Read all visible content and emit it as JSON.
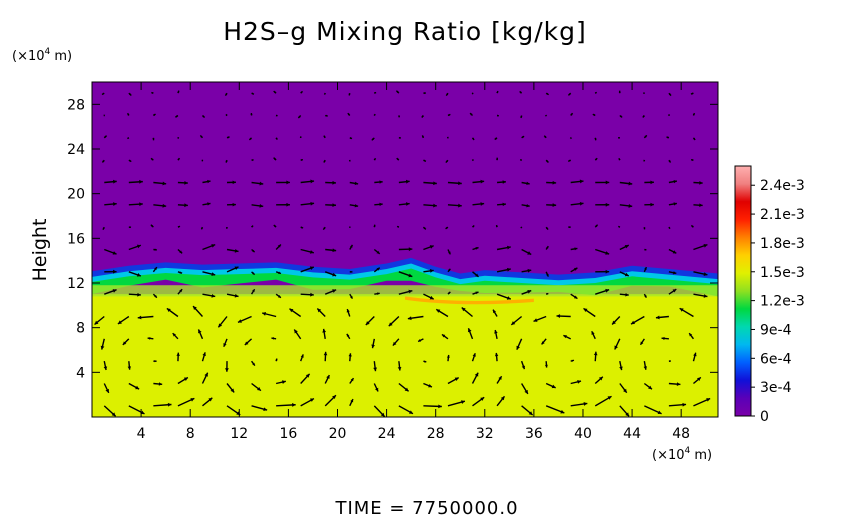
{
  "chart_data": {
    "type": "heatmap",
    "title": "H2S–g Mixing Ratio [kg/kg]",
    "ylabel": "Height",
    "xunit_text": "(×10",
    "unit_exp": "4",
    "unit_tail": " m)",
    "yunit_text": "(×10",
    "xlim": [
      0,
      51
    ],
    "ylim": [
      0,
      30
    ],
    "xticks": [
      "4",
      "8",
      "12",
      "16",
      "20",
      "24",
      "28",
      "32",
      "36",
      "40",
      "44",
      "48"
    ],
    "yticks": [
      "4",
      "8",
      "12",
      "16",
      "20",
      "24",
      "28"
    ],
    "colorbar": {
      "min": 0,
      "max": 0.0026,
      "labels": [
        "0",
        "3e-4",
        "6e-4",
        "9e-4",
        "1.2e-3",
        "1.5e-3",
        "1.8e-3",
        "2.1e-3",
        "2.4e-3"
      ],
      "label_values": [
        0,
        0.0003,
        0.0006,
        0.0009,
        0.0012,
        0.0015,
        0.0018,
        0.0021,
        0.0024
      ],
      "colors": [
        "#7a00a8",
        "#5a00b8",
        "#1010d8",
        "#0060ff",
        "#00b8f0",
        "#00d8b0",
        "#00d840",
        "#90e020",
        "#e0f000",
        "#ffd000",
        "#ff8000",
        "#ff2000",
        "#e00000",
        "#f08080",
        "#ffb0b0"
      ]
    },
    "layers": [
      {
        "name": "upper",
        "y_range": [
          13,
          30
        ],
        "value": 0.0,
        "color": "#7a00a8"
      },
      {
        "name": "interface",
        "y_range": [
          11.5,
          13.5
        ],
        "value": 0.0013,
        "color": "#00d840"
      },
      {
        "name": "lower",
        "y_range": [
          0,
          11
        ],
        "value": 0.00165,
        "color": "#dcf000"
      }
    ],
    "interface_profile": {
      "x": [
        0,
        3,
        6,
        9,
        12,
        15,
        18,
        21,
        24,
        26,
        28,
        30,
        32,
        35,
        38,
        41,
        44,
        47,
        51
      ],
      "y": [
        12.8,
        13.3,
        13.6,
        13.4,
        13.5,
        13.6,
        13.2,
        13.0,
        13.5,
        14.0,
        13.2,
        12.6,
        12.9,
        12.7,
        12.5,
        12.7,
        13.3,
        13.0,
        12.6
      ]
    },
    "vector_field": {
      "description_free": true,
      "x_spacing": 2,
      "y_spacing": 2
    }
  },
  "footer": {
    "time_label": "TIME  =  7750000.0"
  }
}
